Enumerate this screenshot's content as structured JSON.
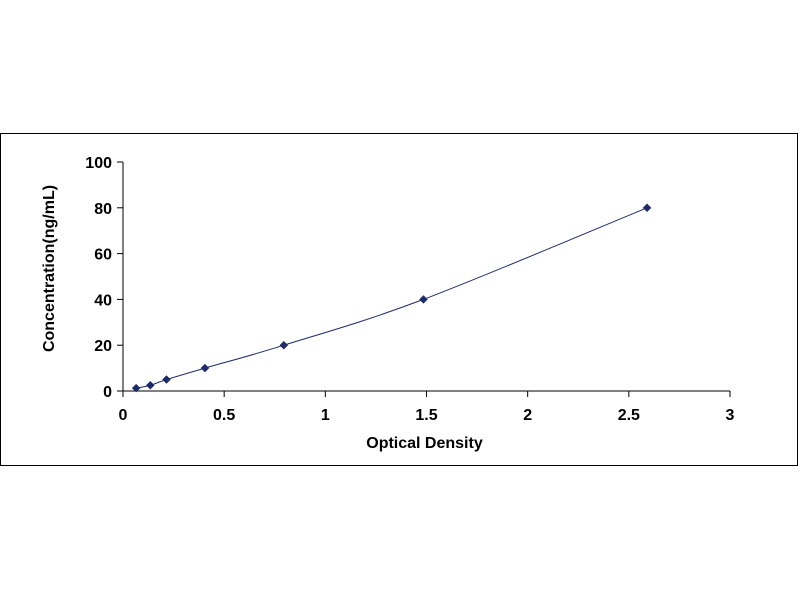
{
  "chart_data": {
    "type": "scatter",
    "title": "",
    "xlabel": "Optical Density",
    "ylabel": "Concentration(ng/mL)",
    "xlim": [
      0,
      3
    ],
    "ylim": [
      0,
      100
    ],
    "x_ticks": [
      "0",
      "0.5",
      "1",
      "1.5",
      "2",
      "2.5",
      "3"
    ],
    "y_ticks": [
      "0",
      "20",
      "40",
      "60",
      "80",
      "100"
    ],
    "grid": false,
    "legend": "none",
    "marker_color": "#1f2a6b",
    "line_color": "#1f2a6b",
    "fit_line": "smooth curve through points",
    "points": [
      {
        "x": 0.065,
        "y": 1.25
      },
      {
        "x": 0.135,
        "y": 2.5
      },
      {
        "x": 0.215,
        "y": 5
      },
      {
        "x": 0.405,
        "y": 10
      },
      {
        "x": 0.795,
        "y": 20
      },
      {
        "x": 1.485,
        "y": 40
      },
      {
        "x": 2.59,
        "y": 80
      }
    ]
  }
}
